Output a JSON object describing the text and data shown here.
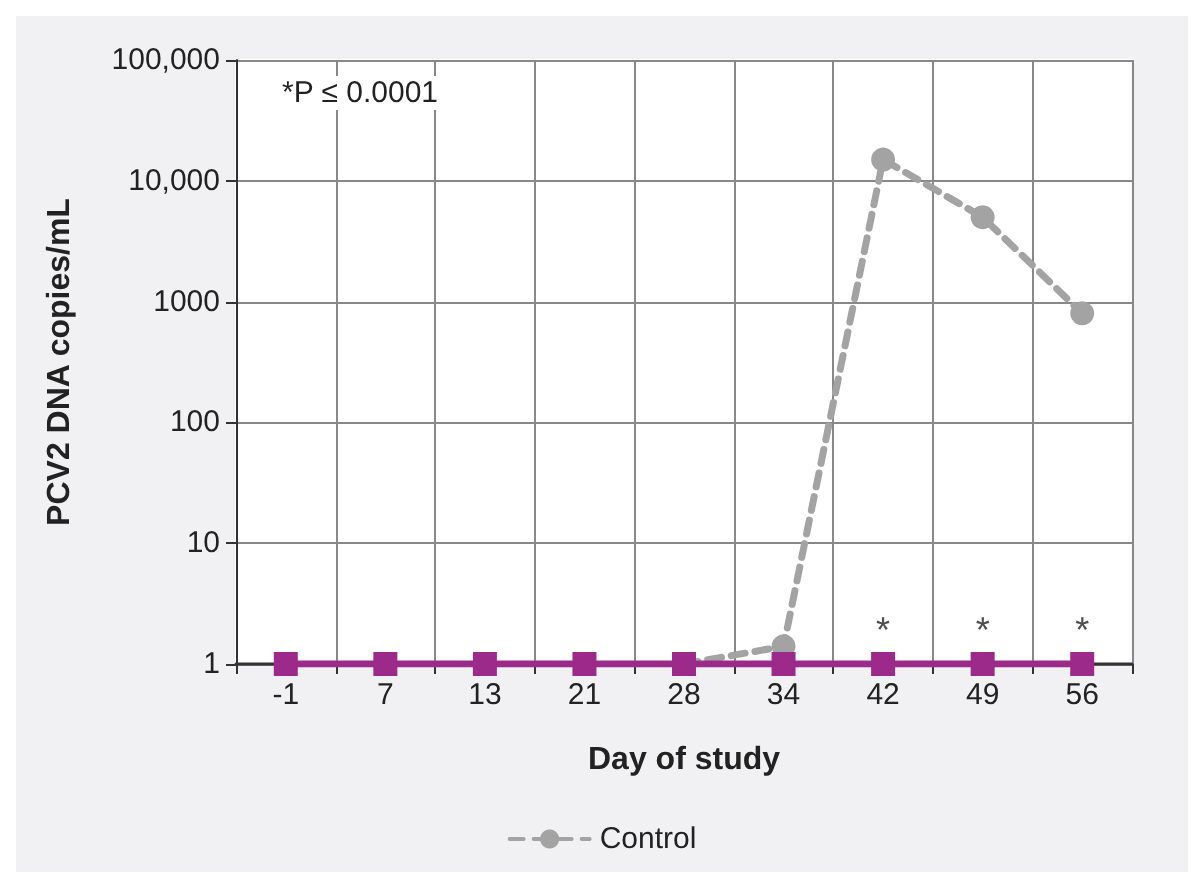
{
  "chart_data": {
    "type": "line",
    "xlabel": "Day of study",
    "ylabel": "PCV2 DNA copies/mL",
    "categories": [
      "-1",
      "7",
      "13",
      "21",
      "28",
      "34",
      "42",
      "49",
      "56"
    ],
    "series": [
      {
        "name": "Control",
        "color": "#a3a3a3",
        "marker": "circle",
        "line_style": "dashed",
        "values": [
          null,
          null,
          null,
          null,
          1,
          1.4,
          15000,
          5000,
          800
        ]
      },
      {
        "color": "#9b2a8a",
        "marker": "square",
        "line_style": "solid",
        "values": [
          1,
          1,
          1,
          1,
          1,
          1,
          1,
          1,
          1
        ]
      }
    ],
    "log": "y",
    "ylim": [
      1,
      100000
    ],
    "yticks": [
      1,
      10,
      100,
      1000,
      {
        "value": 10000,
        "label": "10,000"
      },
      {
        "value": 100000,
        "label": "100,000"
      }
    ],
    "grid": true,
    "legend": "bottom",
    "annotations": [
      "*P ≤ 0.0001",
      {
        "text": "*",
        "x": "42",
        "y": 1
      },
      {
        "text": "*",
        "x": "49",
        "y": 1
      },
      {
        "text": "*",
        "x": "56",
        "y": 1
      }
    ]
  }
}
